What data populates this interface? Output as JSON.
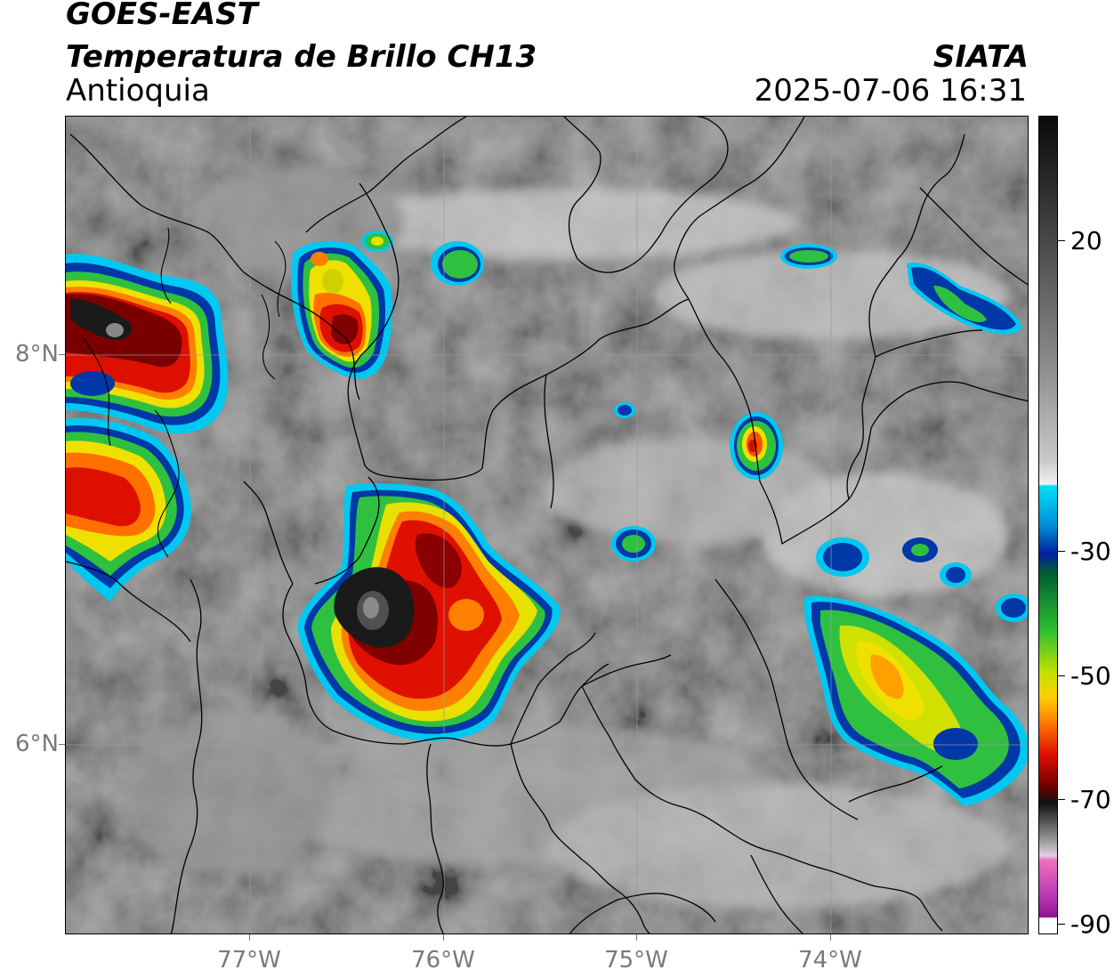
{
  "header": {
    "satellite": "GOES-EAST",
    "product": "Temperatura de Brillo CH13",
    "region": "Antioquia",
    "organization": "SIATA",
    "timestamp": "2025-07-06 16:31"
  },
  "map": {
    "lat_labels": [
      "8°N",
      "6°N"
    ],
    "lon_labels": [
      "77°W",
      "76°W",
      "75°W",
      "74°W"
    ],
    "colors": {
      "background_gray": "#777777",
      "border_lines": "#000000",
      "gridlines": "#999999"
    }
  },
  "colorbar": {
    "tick_labels": [
      "20",
      "-30",
      "-50",
      "-70",
      "-90"
    ],
    "colors": {
      "cyan": "#00d8f0",
      "blue": "#0030a0",
      "green": "#22c030",
      "yellow": "#f0f000",
      "orange": "#ff9000",
      "red": "#e01000",
      "dark_red": "#700000",
      "black": "#101010",
      "magenta": "#a020a0"
    }
  }
}
